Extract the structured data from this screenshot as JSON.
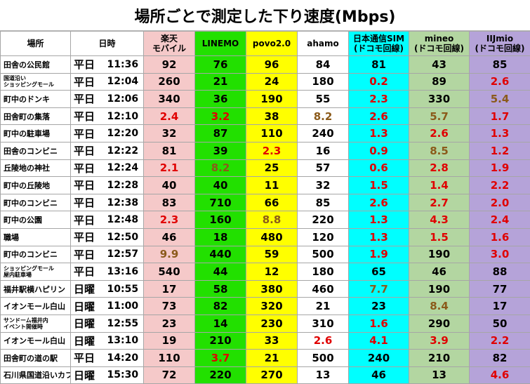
{
  "title": "場所ごとで測定した下り速度(Mbps)",
  "columns": {
    "place": "場所",
    "datetime": "日時",
    "rakuten": "楽天\nモバイル",
    "linemo": "LINEMO",
    "povo": "povo2.0",
    "ahamo": "ahamo",
    "nihon": "日本通信SIM\n(ドコモ回線)",
    "mineo": "mineo\n(ドコモ回線)",
    "iij": "IIJmio\n(ドコモ回線)"
  },
  "colors": {
    "rakuten": "#f5c9c9",
    "linemo": "#22e000",
    "povo": "#ffff00",
    "ahamo": "#ffffff",
    "nihon": "#00ffff",
    "mineo": "#b3d6a1",
    "iij": "#b5a3d9",
    "slow_text": "#e00000",
    "medium_text": "#8b5a1a"
  },
  "chart_data": {
    "type": "table",
    "title": "場所ごとで測定した下り速度(Mbps)",
    "series_names": [
      "楽天モバイル",
      "LINEMO",
      "povo2.0",
      "ahamo",
      "日本通信SIM(ドコモ回線)",
      "mineo(ドコモ回線)",
      "IIJmio(ドコモ回線)"
    ],
    "rows": [
      {
        "place": "田舎の公民館",
        "day": "平日",
        "time": "11:36",
        "values": [
          "92",
          "76",
          "96",
          "84",
          "81",
          "43",
          "85"
        ],
        "colors": [
          "",
          "",
          "",
          "",
          "",
          "",
          ""
        ]
      },
      {
        "place": "国道沿い\nショッピングモール",
        "day": "平日",
        "time": "12:04",
        "values": [
          "260",
          "21",
          "24",
          "180",
          "0.2",
          "89",
          "2.6"
        ],
        "colors": [
          "",
          "",
          "",
          "",
          "red",
          "",
          "red"
        ]
      },
      {
        "place": "町中のドンキ",
        "day": "平日",
        "time": "12:06",
        "values": [
          "340",
          "36",
          "190",
          "55",
          "2.3",
          "330",
          "5.4"
        ],
        "colors": [
          "",
          "",
          "",
          "",
          "red",
          "",
          "brown"
        ]
      },
      {
        "place": "田舎町の集落",
        "day": "平日",
        "time": "12:10",
        "values": [
          "2.4",
          "3.2",
          "38",
          "8.2",
          "2.6",
          "5.7",
          "1.7"
        ],
        "colors": [
          "red",
          "red",
          "",
          "brown",
          "red",
          "brown",
          "red"
        ]
      },
      {
        "place": "町中の駐車場",
        "day": "平日",
        "time": "12:20",
        "values": [
          "32",
          "87",
          "110",
          "240",
          "1.3",
          "2.6",
          "1.3"
        ],
        "colors": [
          "",
          "",
          "",
          "",
          "red",
          "red",
          "red"
        ]
      },
      {
        "place": "田舎のコンビニ",
        "day": "平日",
        "time": "12:22",
        "values": [
          "81",
          "39",
          "2.3",
          "16",
          "0.9",
          "8.5",
          "1.2"
        ],
        "colors": [
          "",
          "",
          "red",
          "",
          "red",
          "brown",
          "red"
        ]
      },
      {
        "place": "丘陵地の神社",
        "day": "平日",
        "time": "12:24",
        "values": [
          "2.1",
          "8.2",
          "25",
          "57",
          "0.6",
          "2.8",
          "1.9"
        ],
        "colors": [
          "red",
          "brown",
          "",
          "",
          "red",
          "red",
          "red"
        ]
      },
      {
        "place": "町中の丘陵地",
        "day": "平日",
        "time": "12:28",
        "values": [
          "40",
          "40",
          "11",
          "32",
          "1.5",
          "1.4",
          "2.2"
        ],
        "colors": [
          "",
          "",
          "",
          "",
          "red",
          "red",
          "red"
        ]
      },
      {
        "place": "町中のコンビニ",
        "day": "平日",
        "time": "12:38",
        "values": [
          "83",
          "710",
          "66",
          "85",
          "2.6",
          "2.7",
          "2.0"
        ],
        "colors": [
          "",
          "",
          "",
          "",
          "red",
          "red",
          "red"
        ]
      },
      {
        "place": "町中の公園",
        "day": "平日",
        "time": "12:48",
        "values": [
          "2.3",
          "160",
          "8.8",
          "220",
          "1.3",
          "4.3",
          "2.4"
        ],
        "colors": [
          "red",
          "",
          "brown",
          "",
          "red",
          "red",
          "red"
        ]
      },
      {
        "place": "職場",
        "day": "平日",
        "time": "12:50",
        "values": [
          "46",
          "18",
          "480",
          "120",
          "1.3",
          "1.5",
          "1.6"
        ],
        "colors": [
          "",
          "",
          "",
          "",
          "red",
          "red",
          "red"
        ]
      },
      {
        "place": "町中のコンビニ",
        "day": "平日",
        "time": "12:57",
        "values": [
          "9.9",
          "440",
          "59",
          "500",
          "1.9",
          "190",
          "3.0"
        ],
        "colors": [
          "brown",
          "",
          "",
          "",
          "red",
          "",
          "red"
        ]
      },
      {
        "place": "ショッピングモール\n屋内駐車場",
        "day": "平日",
        "time": "13:16",
        "values": [
          "540",
          "44",
          "12",
          "180",
          "65",
          "46",
          "88"
        ],
        "colors": [
          "",
          "",
          "",
          "",
          "",
          "",
          ""
        ]
      },
      {
        "place": "福井駅横ハピリン",
        "day": "日曜",
        "time": "10:55",
        "values": [
          "17",
          "58",
          "380",
          "460",
          "7.7",
          "190",
          "77"
        ],
        "colors": [
          "",
          "",
          "",
          "",
          "brown",
          "",
          ""
        ]
      },
      {
        "place": "イオンモール白山",
        "day": "日曜",
        "time": "11:00",
        "values": [
          "73",
          "82",
          "320",
          "21",
          "23",
          "8.4",
          "17"
        ],
        "colors": [
          "",
          "",
          "",
          "",
          "",
          "brown",
          ""
        ]
      },
      {
        "place": "サンドーム福井内\nイベント開催時",
        "day": "日曜",
        "time": "12:55",
        "values": [
          "23",
          "14",
          "230",
          "310",
          "1.6",
          "290",
          "50"
        ],
        "colors": [
          "",
          "",
          "",
          "",
          "red",
          "",
          ""
        ]
      },
      {
        "place": "イオンモール白山",
        "day": "日曜",
        "time": "13:10",
        "values": [
          "19",
          "210",
          "33",
          "2.6",
          "4.1",
          "3.9",
          "2.2"
        ],
        "colors": [
          "",
          "",
          "",
          "red",
          "red",
          "red",
          "red"
        ]
      },
      {
        "place": "田舎町の道の駅",
        "day": "平日",
        "time": "14:20",
        "values": [
          "110",
          "3.7",
          "21",
          "500",
          "240",
          "210",
          "82"
        ],
        "colors": [
          "",
          "red",
          "",
          "",
          "",
          "",
          ""
        ]
      },
      {
        "place": "石川県国道沿いカフ",
        "day": "日曜",
        "time": "15:30",
        "values": [
          "72",
          "220",
          "270",
          "13",
          "46",
          "13",
          "4.6"
        ],
        "colors": [
          "",
          "",
          "",
          "",
          "",
          "",
          "red"
        ]
      }
    ]
  }
}
